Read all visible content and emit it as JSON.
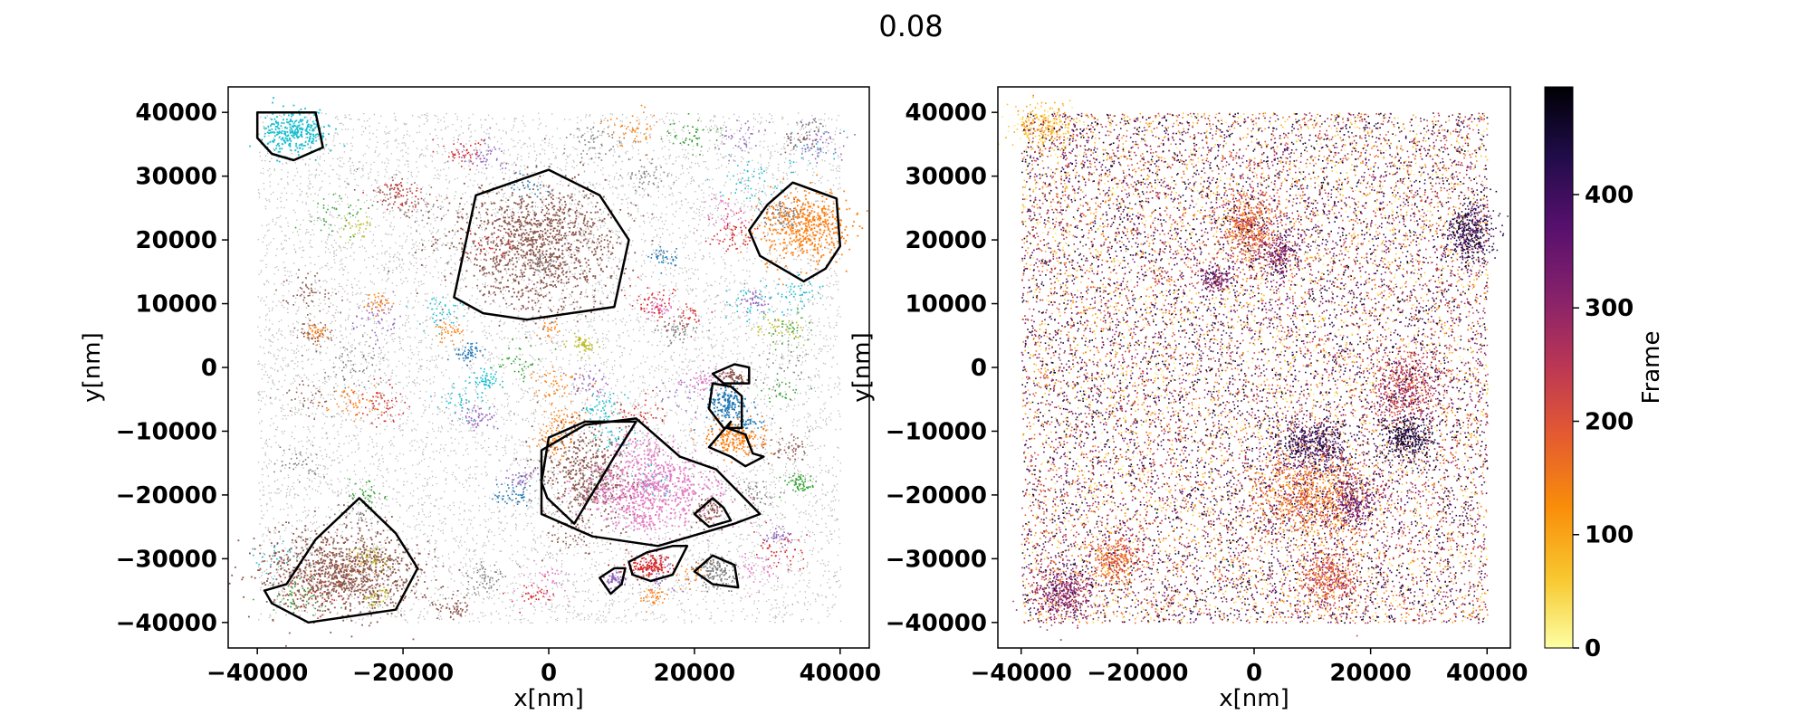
{
  "figure": {
    "title": "0.08"
  },
  "chart_data": [
    {
      "type": "scatter",
      "panel": "left",
      "description_visible": "clustered localizations with convex hulls",
      "xlabel": "x[nm]",
      "ylabel": "y[nm]",
      "xlim": [
        -44000,
        44000
      ],
      "ylim": [
        -44000,
        44000
      ],
      "x_ticks": [
        -40000,
        -20000,
        0,
        20000,
        40000
      ],
      "x_tick_labels": [
        "−40000",
        "−20000",
        "0",
        "20000",
        "40000"
      ],
      "y_ticks": [
        40000,
        30000,
        20000,
        10000,
        0,
        -10000,
        -20000,
        -30000,
        -40000
      ],
      "y_tick_labels": [
        "40000",
        "30000",
        "20000",
        "10000",
        "0",
        "−10000",
        "−20000",
        "−30000",
        "−40000"
      ],
      "background_color": "#7f7f7f",
      "clusters": [
        {
          "color": "#17becf",
          "cx": -35000,
          "cy": 37000,
          "rx": 4500,
          "ry": 3000,
          "n": 300
        },
        {
          "color": "#8c564b",
          "cx": -2000,
          "cy": 19000,
          "rx": 10000,
          "ry": 9000,
          "n": 1100
        },
        {
          "color": "#ff7f0e",
          "cx": 35000,
          "cy": 22000,
          "rx": 5500,
          "ry": 5500,
          "n": 450
        },
        {
          "color": "#8c564b",
          "cx": 5000,
          "cy": -17000,
          "rx": 6000,
          "ry": 8000,
          "n": 450
        },
        {
          "color": "#e377c2",
          "cx": 14000,
          "cy": -19000,
          "rx": 8000,
          "ry": 6000,
          "n": 650
        },
        {
          "color": "#1f77b4",
          "cx": 24500,
          "cy": -5500,
          "rx": 2500,
          "ry": 2500,
          "n": 160
        },
        {
          "color": "#ff7f0e",
          "cx": 25500,
          "cy": -11000,
          "rx": 3500,
          "ry": 2500,
          "n": 180
        },
        {
          "color": "#8c564b",
          "cx": 25500,
          "cy": -1500,
          "rx": 2000,
          "ry": 1000,
          "n": 60
        },
        {
          "color": "#8c564b",
          "cx": -28000,
          "cy": -32000,
          "rx": 10000,
          "ry": 6000,
          "n": 1000
        },
        {
          "color": "#d62728",
          "cx": 14000,
          "cy": -31000,
          "rx": 2800,
          "ry": 1800,
          "n": 130
        },
        {
          "color": "#9467bd",
          "cx": 9000,
          "cy": -33000,
          "rx": 1300,
          "ry": 1300,
          "n": 50
        },
        {
          "color": "#7f7f7f",
          "cx": 22500,
          "cy": -31500,
          "rx": 2200,
          "ry": 2000,
          "n": 80
        },
        {
          "color": "#8c564b",
          "cx": 22000,
          "cy": -22500,
          "rx": 1800,
          "ry": 1800,
          "n": 60
        }
      ],
      "hulls": [
        [
          [
            -40000,
            40000
          ],
          [
            -32000,
            40000
          ],
          [
            -31000,
            34500
          ],
          [
            -35000,
            32500
          ],
          [
            -38000,
            33500
          ],
          [
            -40000,
            36000
          ]
        ],
        [
          [
            -13000,
            11000
          ],
          [
            -10000,
            27000
          ],
          [
            0,
            31000
          ],
          [
            7000,
            27000
          ],
          [
            11000,
            20000
          ],
          [
            9000,
            9500
          ],
          [
            -3000,
            7500
          ],
          [
            -9000,
            8500
          ]
        ],
        [
          [
            33500,
            29000
          ],
          [
            39500,
            26500
          ],
          [
            40000,
            19000
          ],
          [
            38000,
            15500
          ],
          [
            35000,
            13500
          ],
          [
            29000,
            17500
          ],
          [
            27500,
            21500
          ],
          [
            30000,
            25500
          ]
        ],
        [
          [
            -1000,
            -13000
          ],
          [
            5000,
            -9000
          ],
          [
            12000,
            -8000
          ],
          [
            18000,
            -14000
          ],
          [
            23000,
            -16000
          ],
          [
            29000,
            -23000
          ],
          [
            25500,
            -24500
          ],
          [
            15000,
            -28000
          ],
          [
            6000,
            -26500
          ],
          [
            -1000,
            -23000
          ]
        ],
        [
          [
            -36000,
            -34000
          ],
          [
            -32000,
            -27000
          ],
          [
            -26000,
            -20500
          ],
          [
            -21000,
            -26000
          ],
          [
            -18000,
            -31500
          ],
          [
            -21000,
            -38000
          ],
          [
            -33000,
            -40000
          ],
          [
            -38000,
            -37000
          ],
          [
            -39000,
            -35000
          ]
        ],
        [
          [
            -1000,
            -18000
          ],
          [
            0,
            -11000
          ],
          [
            5000,
            -8500
          ],
          [
            12000,
            -8500
          ],
          [
            9000,
            -14000
          ],
          [
            3500,
            -24500
          ],
          [
            -200,
            -20500
          ]
        ],
        [
          [
            11000,
            -30500
          ],
          [
            13500,
            -29000
          ],
          [
            17000,
            -28000
          ],
          [
            19000,
            -28000
          ],
          [
            17000,
            -32500
          ],
          [
            14000,
            -33500
          ],
          [
            11500,
            -32500
          ]
        ],
        [
          [
            24500,
            -9500
          ],
          [
            27000,
            -10500
          ],
          [
            28000,
            -13500
          ],
          [
            29500,
            -14000
          ],
          [
            27000,
            -15500
          ],
          [
            25000,
            -14000
          ],
          [
            22000,
            -12500
          ],
          [
            25000,
            -8500
          ]
        ],
        [
          [
            22500,
            -1000
          ],
          [
            25500,
            500
          ],
          [
            27500,
            0
          ],
          [
            27500,
            -2500
          ],
          [
            24000,
            -2500
          ]
        ],
        [
          [
            22500,
            -2500
          ],
          [
            25000,
            -3000
          ],
          [
            26500,
            -4500
          ],
          [
            26500,
            -9500
          ],
          [
            24000,
            -9500
          ],
          [
            22000,
            -6500
          ]
        ],
        [
          [
            7000,
            -33000
          ],
          [
            9000,
            -31500
          ],
          [
            10500,
            -31500
          ],
          [
            10000,
            -34000
          ],
          [
            8500,
            -35500
          ]
        ],
        [
          [
            20000,
            -23000
          ],
          [
            22500,
            -20500
          ],
          [
            24000,
            -22000
          ],
          [
            25000,
            -24000
          ],
          [
            22000,
            -25000
          ]
        ],
        [
          [
            22500,
            -29500
          ],
          [
            25500,
            -31000
          ],
          [
            26000,
            -34500
          ],
          [
            22500,
            -34000
          ],
          [
            20000,
            -32000
          ]
        ]
      ]
    },
    {
      "type": "scatter",
      "panel": "right",
      "xlabel": "x[nm]",
      "ylabel": "y[nm]",
      "xlim": [
        -44000,
        44000
      ],
      "ylim": [
        -44000,
        44000
      ],
      "x_ticks": [
        -40000,
        -20000,
        0,
        20000,
        40000
      ],
      "x_tick_labels": [
        "−40000",
        "−20000",
        "0",
        "20000",
        "40000"
      ],
      "y_ticks": [
        40000,
        30000,
        20000,
        10000,
        0,
        -10000,
        -20000,
        -30000,
        -40000
      ],
      "y_tick_labels": [
        "40000",
        "30000",
        "20000",
        "10000",
        "0",
        "−10000",
        "−20000",
        "−30000",
        "−40000"
      ],
      "color_by": "frame",
      "colormap": "inferno_r",
      "colorbar": {
        "label": "Frame",
        "range": [
          0,
          495
        ],
        "ticks": [
          0,
          100,
          200,
          300,
          400
        ],
        "tick_labels": [
          "0",
          "100",
          "200",
          "300",
          "400"
        ]
      },
      "density_blobs": [
        {
          "cx": -36000,
          "cy": 38000,
          "rx": 4500,
          "ry": 3000,
          "n": 250,
          "frame": 70
        },
        {
          "cx": -1000,
          "cy": 22000,
          "rx": 4500,
          "ry": 5500,
          "n": 500,
          "frame": 180
        },
        {
          "cx": 4500,
          "cy": 18000,
          "rx": 3000,
          "ry": 3000,
          "n": 200,
          "frame": 330
        },
        {
          "cx": -6500,
          "cy": 14000,
          "rx": 2500,
          "ry": 2000,
          "n": 150,
          "frame": 330
        },
        {
          "cx": 37000,
          "cy": 21500,
          "rx": 4000,
          "ry": 4500,
          "n": 400,
          "frame": 420
        },
        {
          "cx": 26000,
          "cy": -3000,
          "rx": 5500,
          "ry": 5000,
          "n": 450,
          "frame": 250
        },
        {
          "cx": 26000,
          "cy": -11000,
          "rx": 4000,
          "ry": 3000,
          "n": 350,
          "frame": 440
        },
        {
          "cx": 10000,
          "cy": -12000,
          "rx": 6000,
          "ry": 4000,
          "n": 450,
          "frame": 400
        },
        {
          "cx": 10000,
          "cy": -20000,
          "rx": 9000,
          "ry": 6000,
          "n": 800,
          "frame": 160
        },
        {
          "cx": 17000,
          "cy": -21000,
          "rx": 4000,
          "ry": 4000,
          "n": 250,
          "frame": 330
        },
        {
          "cx": 13000,
          "cy": -33000,
          "rx": 5000,
          "ry": 4000,
          "n": 400,
          "frame": 200
        },
        {
          "cx": -24000,
          "cy": -30000,
          "rx": 4000,
          "ry": 4000,
          "n": 300,
          "frame": 170
        },
        {
          "cx": -33000,
          "cy": -35500,
          "rx": 5000,
          "ry": 4000,
          "n": 400,
          "frame": 300
        }
      ]
    }
  ]
}
